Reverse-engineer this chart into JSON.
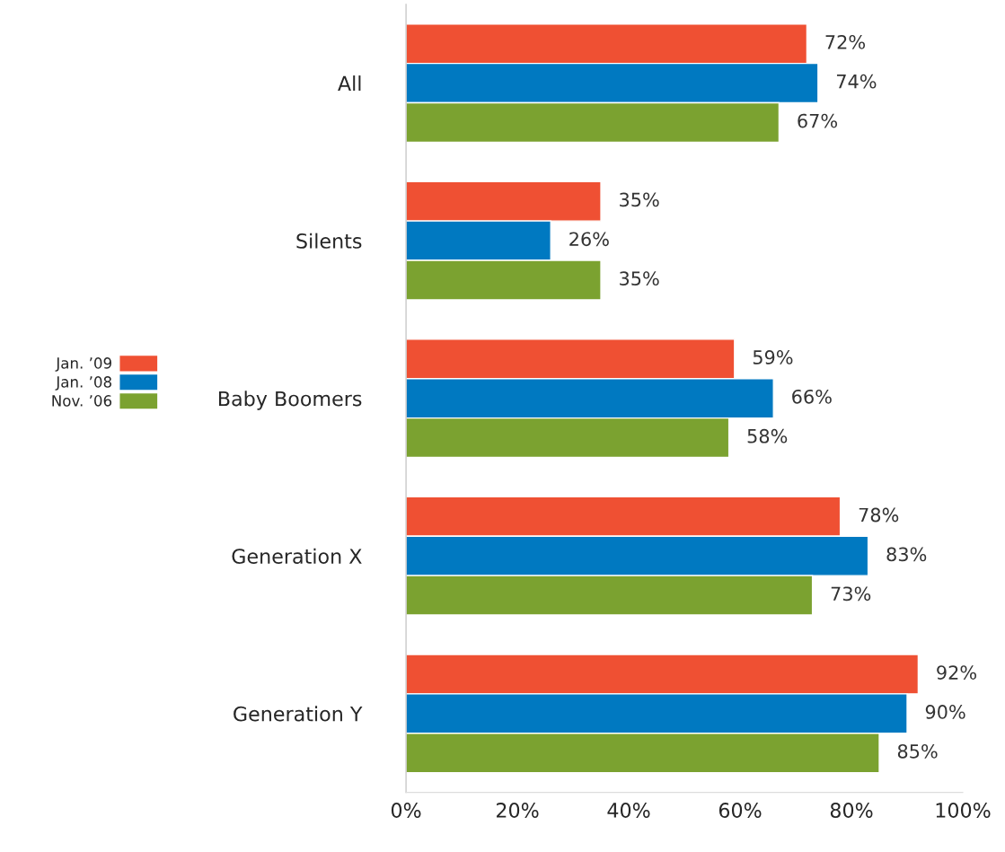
{
  "chart_data": {
    "type": "bar",
    "orientation": "horizontal",
    "categories": [
      "All",
      "Silents",
      "Baby Boomers",
      "Generation X",
      "Generation Y"
    ],
    "series": [
      {
        "name": "Jan. ’09",
        "color": "#ef5033",
        "values": [
          72,
          35,
          59,
          78,
          92
        ],
        "value_labels": [
          "72%",
          "35%",
          "59%",
          "78%",
          "92%"
        ]
      },
      {
        "name": "Jan. ’08",
        "color": "#0079c1",
        "values": [
          74,
          26,
          66,
          83,
          90
        ],
        "value_labels": [
          "74%",
          "26%",
          "66%",
          "83%",
          "90%"
        ]
      },
      {
        "name": "Nov. ’06",
        "color": "#7ba230",
        "values": [
          67,
          35,
          58,
          73,
          85
        ],
        "value_labels": [
          "67%",
          "35%",
          "58%",
          "73%",
          "85%"
        ]
      }
    ],
    "xlim": [
      0,
      100
    ],
    "xticks": [
      {
        "value": 0,
        "label": "0%"
      },
      {
        "value": 20,
        "label": "20%"
      },
      {
        "value": 40,
        "label": "40%"
      },
      {
        "value": 60,
        "label": "60%"
      },
      {
        "value": 80,
        "label": "80%"
      },
      {
        "value": 100,
        "label": "100%"
      }
    ],
    "grid": false,
    "legend": "left"
  }
}
